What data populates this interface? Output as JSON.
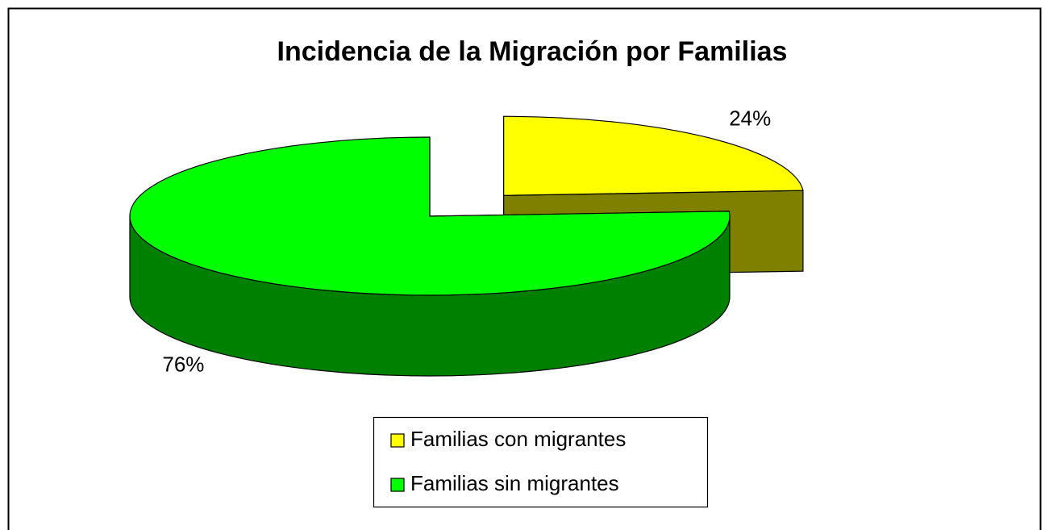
{
  "chart_data": {
    "type": "pie",
    "title": "Incidencia de la Migración por Familias",
    "categories": [
      "Familias con migrantes",
      "Familias sin migrantes"
    ],
    "values": [
      24,
      76
    ],
    "value_labels": [
      "24%",
      "76%"
    ],
    "colors": [
      "#ffff00",
      "#00ff00"
    ],
    "legend": "bottom"
  }
}
